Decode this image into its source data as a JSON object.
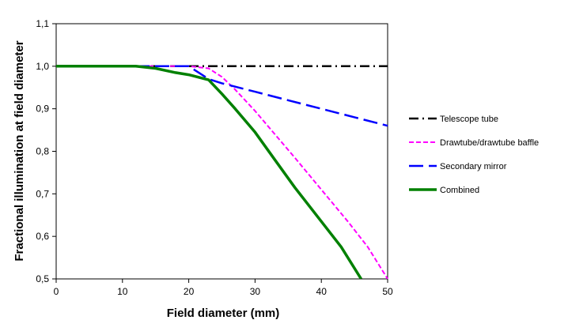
{
  "chart_data": {
    "type": "line",
    "title": "",
    "xlabel": "Field diameter (mm)",
    "ylabel": "Fractional illumination at field diameter",
    "xlim": [
      0,
      50
    ],
    "ylim": [
      0.5,
      1.1
    ],
    "xticks": [
      0,
      10,
      20,
      30,
      40,
      50
    ],
    "xtick_labels": [
      "0",
      "10",
      "20",
      "30",
      "40",
      "50"
    ],
    "yticks": [
      0.5,
      0.6,
      0.7,
      0.8,
      0.9,
      1.0,
      1.1
    ],
    "ytick_labels": [
      "0,5",
      "0,6",
      "0,7",
      "0,8",
      "0,9",
      "1,0",
      "1,1"
    ],
    "grid": false,
    "legend_position": "right",
    "series": [
      {
        "name": "Telescope tube",
        "color": "#000000",
        "style": "dash-dot",
        "x": [
          0,
          50
        ],
        "y": [
          1.0,
          1.0
        ]
      },
      {
        "name": "Drawtube/drawtube baffle",
        "color": "#ff00ff",
        "style": "short-dash",
        "x": [
          0,
          16,
          20,
          23,
          25,
          27,
          30,
          33,
          36,
          40,
          44,
          47,
          50
        ],
        "y": [
          1.0,
          1.0,
          1.0,
          0.995,
          0.975,
          0.945,
          0.895,
          0.84,
          0.785,
          0.71,
          0.635,
          0.575,
          0.5
        ]
      },
      {
        "name": "Secondary mirror",
        "color": "#0000ff",
        "style": "long-dash",
        "x": [
          0,
          20,
          23,
          25,
          30,
          35,
          40,
          45,
          50
        ],
        "y": [
          1.0,
          1.0,
          0.97,
          0.96,
          0.94,
          0.92,
          0.9,
          0.88,
          0.86
        ]
      },
      {
        "name": "Combined",
        "color": "#008000",
        "style": "solid-thick",
        "x": [
          0,
          12,
          15,
          18,
          20,
          23,
          25,
          27,
          30,
          33,
          36,
          40,
          43,
          46
        ],
        "y": [
          1.0,
          1.0,
          0.995,
          0.985,
          0.98,
          0.968,
          0.935,
          0.9,
          0.845,
          0.78,
          0.715,
          0.635,
          0.575,
          0.5
        ]
      }
    ]
  }
}
